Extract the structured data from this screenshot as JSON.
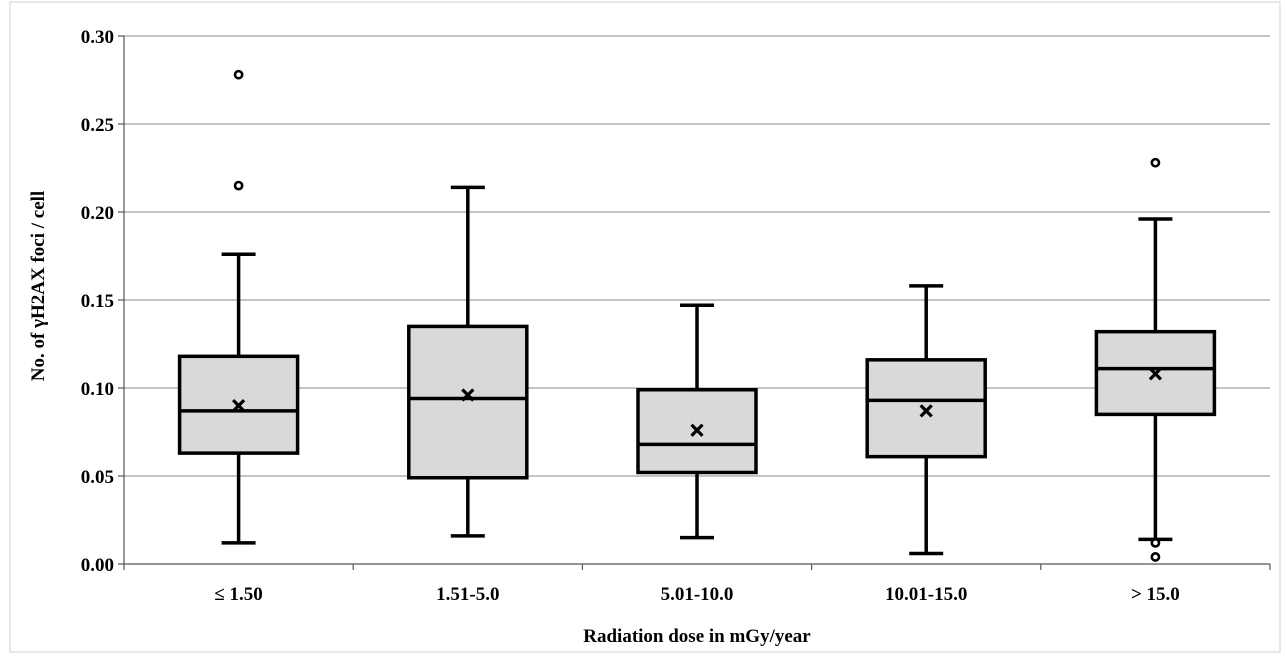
{
  "chart_data": {
    "type": "box",
    "title": "",
    "xlabel": "Radiation dose in mGy/year",
    "ylabel": "No. of γH2AX foci / cell",
    "ylim": [
      0,
      0.3
    ],
    "yticks": [
      "0.00",
      "0.05",
      "0.10",
      "0.15",
      "0.20",
      "0.25",
      "0.30"
    ],
    "ytick_values": [
      0,
      0.05,
      0.1,
      0.15,
      0.2,
      0.25,
      0.3
    ],
    "grid": true,
    "legend": "none",
    "categories": [
      "≤ 1.50",
      "1.51-5.0",
      "5.01-10.0",
      "10.01-15.0",
      "> 15.0"
    ],
    "boxes": [
      {
        "category": "≤ 1.50",
        "min": 0.012,
        "q1": 0.063,
        "median": 0.087,
        "q3": 0.118,
        "max": 0.176,
        "mean": 0.09,
        "outliers": [
          0.215,
          0.278
        ]
      },
      {
        "category": "1.51-5.0",
        "min": 0.016,
        "q1": 0.049,
        "median": 0.094,
        "q3": 0.135,
        "max": 0.214,
        "mean": 0.096,
        "outliers": []
      },
      {
        "category": "5.01-10.0",
        "min": 0.015,
        "q1": 0.052,
        "median": 0.068,
        "q3": 0.099,
        "max": 0.147,
        "mean": 0.076,
        "outliers": []
      },
      {
        "category": "10.01-15.0",
        "min": 0.006,
        "q1": 0.061,
        "median": 0.093,
        "q3": 0.116,
        "max": 0.158,
        "mean": 0.087,
        "outliers": []
      },
      {
        "category": "> 15.0",
        "min": 0.014,
        "q1": 0.085,
        "median": 0.111,
        "q3": 0.132,
        "max": 0.196,
        "mean": 0.108,
        "outliers": [
          0.228,
          0.012,
          0.004
        ]
      }
    ]
  }
}
